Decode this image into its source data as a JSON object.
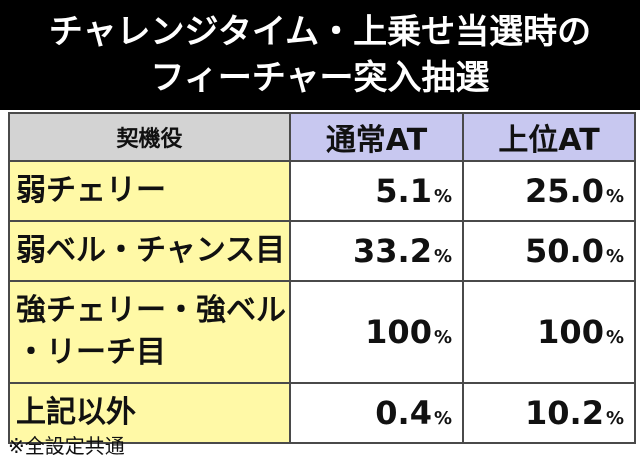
{
  "title": {
    "line1": "チャレンジタイム・上乗せ当選時の",
    "line2": "フィーチャー突入抽選"
  },
  "table": {
    "headers": [
      "契機役",
      "通常AT",
      "上位AT"
    ],
    "rows": [
      {
        "role": "弱チェリー",
        "normal": "5.1",
        "upper": "25.0"
      },
      {
        "role": "弱ベル・チャンス目",
        "normal": "33.2",
        "upper": "50.0"
      },
      {
        "role_line1": "強チェリー・強ベル",
        "role_line2": "・リーチ目",
        "normal": "100",
        "upper": "100"
      },
      {
        "role": "上記以外",
        "normal": "0.4",
        "upper": "10.2"
      }
    ],
    "unit": "%"
  },
  "footnote": "※全設定共通"
}
